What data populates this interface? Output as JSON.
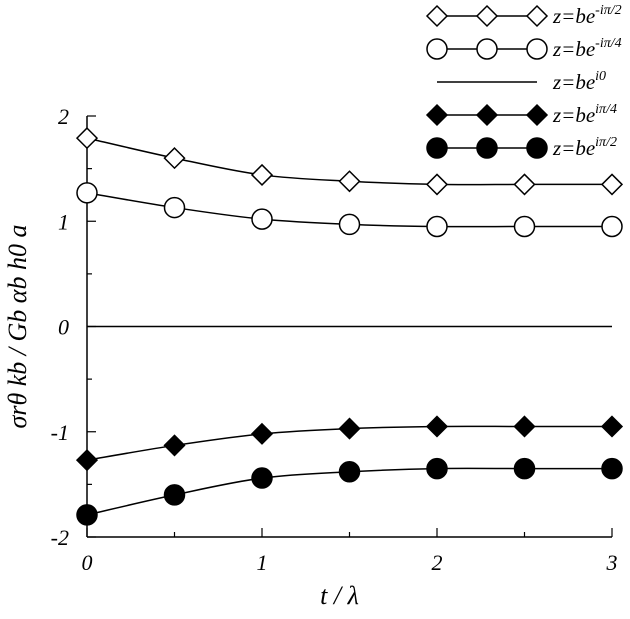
{
  "chart_data": {
    "type": "line",
    "xlabel": "t / λ",
    "ylabel": "σrθ kb / Gb αb h0 a",
    "xlim": [
      0,
      3
    ],
    "ylim": [
      -2,
      2
    ],
    "xticks": [
      "0",
      "1",
      "2",
      "3"
    ],
    "yticks": [
      "-2",
      "-1",
      "0",
      "1",
      "2"
    ],
    "grid": false,
    "legend_position": "top-right",
    "x": [
      0,
      0.5,
      1,
      1.5,
      2,
      2.5,
      3
    ],
    "series": [
      {
        "name": "z=be^{-iπ/2}",
        "base": "z=be",
        "sup": "-iπ/2",
        "marker": "diamond-open",
        "values": [
          1.79,
          1.6,
          1.44,
          1.38,
          1.35,
          1.35,
          1.35
        ]
      },
      {
        "name": "z=be^{-iπ/4}",
        "base": "z=be",
        "sup": "-iπ/4",
        "marker": "circle-open",
        "values": [
          1.27,
          1.13,
          1.02,
          0.97,
          0.95,
          0.95,
          0.95
        ]
      },
      {
        "name": "z=be^{i0}",
        "base": "z=be",
        "sup": "i0",
        "marker": "none",
        "values": [
          0,
          0,
          0,
          0,
          0,
          0,
          0
        ]
      },
      {
        "name": "z=be^{iπ/4}",
        "base": "z=be",
        "sup": "iπ/4",
        "marker": "diamond-filled",
        "values": [
          -1.27,
          -1.13,
          -1.02,
          -0.97,
          -0.95,
          -0.95,
          -0.95
        ]
      },
      {
        "name": "z=be^{iπ/2}",
        "base": "z=be",
        "sup": "iπ/2",
        "marker": "circle-filled",
        "values": [
          -1.79,
          -1.6,
          -1.44,
          -1.38,
          -1.35,
          -1.35,
          -1.35
        ]
      }
    ],
    "colors": {
      "line": "#000000",
      "background": "#ffffff"
    }
  }
}
